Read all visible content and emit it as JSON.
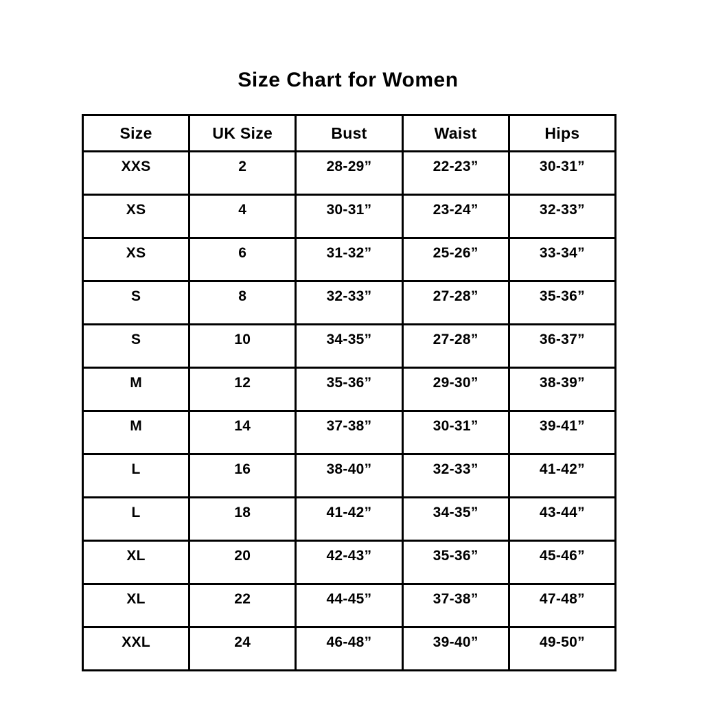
{
  "page": {
    "background_color": "#ffffff",
    "text_color": "#000000",
    "border_color": "#000000"
  },
  "title": "Size Chart for Women",
  "table": {
    "columns": [
      "Size",
      "UK Size",
      "Bust",
      "Waist",
      "Hips"
    ],
    "rows": [
      [
        "XXS",
        "2",
        "28-29”",
        "22-23”",
        "30-31”"
      ],
      [
        "XS",
        "4",
        "30-31”",
        "23-24”",
        "32-33”"
      ],
      [
        "XS",
        "6",
        "31-32”",
        "25-26”",
        "33-34”"
      ],
      [
        "S",
        "8",
        "32-33”",
        "27-28”",
        "35-36”"
      ],
      [
        "S",
        "10",
        "34-35”",
        "27-28”",
        "36-37”"
      ],
      [
        "M",
        "12",
        "35-36”",
        "29-30”",
        "38-39”"
      ],
      [
        "M",
        "14",
        "37-38”",
        "30-31”",
        "39-41”"
      ],
      [
        "L",
        "16",
        "38-40”",
        "32-33”",
        "41-42”"
      ],
      [
        "L",
        "18",
        "41-42”",
        "34-35”",
        "43-44”"
      ],
      [
        "XL",
        "20",
        "42-43”",
        "35-36”",
        "45-46”"
      ],
      [
        "XL",
        "22",
        "44-45”",
        "37-38”",
        "47-48”"
      ],
      [
        "XXL",
        "24",
        "46-48”",
        "39-40”",
        "49-50”"
      ]
    ]
  }
}
